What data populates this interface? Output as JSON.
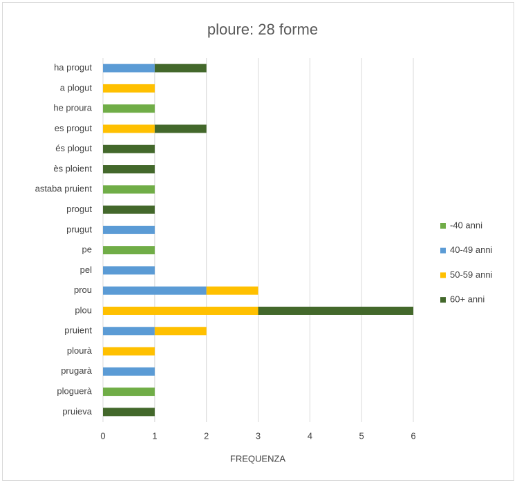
{
  "chart_data": {
    "type": "stacked_bar_horizontal",
    "title": "ploure: 28 forme",
    "x_label": "FREQUENZA",
    "categories": [
      "ha progut",
      "a plogut",
      "he proura",
      "es progut",
      "és plogut",
      "ès ploient",
      "astaba pruient",
      "progut",
      "prugut",
      "pe",
      "pel",
      "prou",
      "plou",
      "pruient",
      "plourà",
      "prugarà",
      "ploguerà",
      "pruieva"
    ],
    "series": [
      {
        "name": "-40 anni",
        "color": "#70ad47",
        "values": [
          0,
          0,
          1,
          0,
          0,
          0,
          1,
          0,
          0,
          1,
          0,
          0,
          0,
          0,
          0,
          0,
          1,
          0
        ]
      },
      {
        "name": "40-49 anni",
        "color": "#5b9bd5",
        "values": [
          1,
          0,
          0,
          0,
          0,
          0,
          0,
          0,
          1,
          0,
          1,
          2,
          0,
          1,
          0,
          1,
          0,
          0
        ]
      },
      {
        "name": "50-59 anni",
        "color": "#ffc000",
        "values": [
          0,
          1,
          0,
          1,
          0,
          0,
          0,
          0,
          0,
          0,
          0,
          1,
          3,
          1,
          1,
          0,
          0,
          0
        ]
      },
      {
        "name": "60+ anni",
        "color": "#43682b",
        "values": [
          1,
          0,
          0,
          1,
          1,
          1,
          0,
          1,
          0,
          0,
          0,
          0,
          3,
          0,
          0,
          0,
          0,
          1
        ]
      }
    ],
    "xlim": [
      0,
      6
    ],
    "xticks": [
      0,
      1,
      2,
      3,
      4,
      5,
      6
    ],
    "grid": true,
    "legend": "right"
  }
}
